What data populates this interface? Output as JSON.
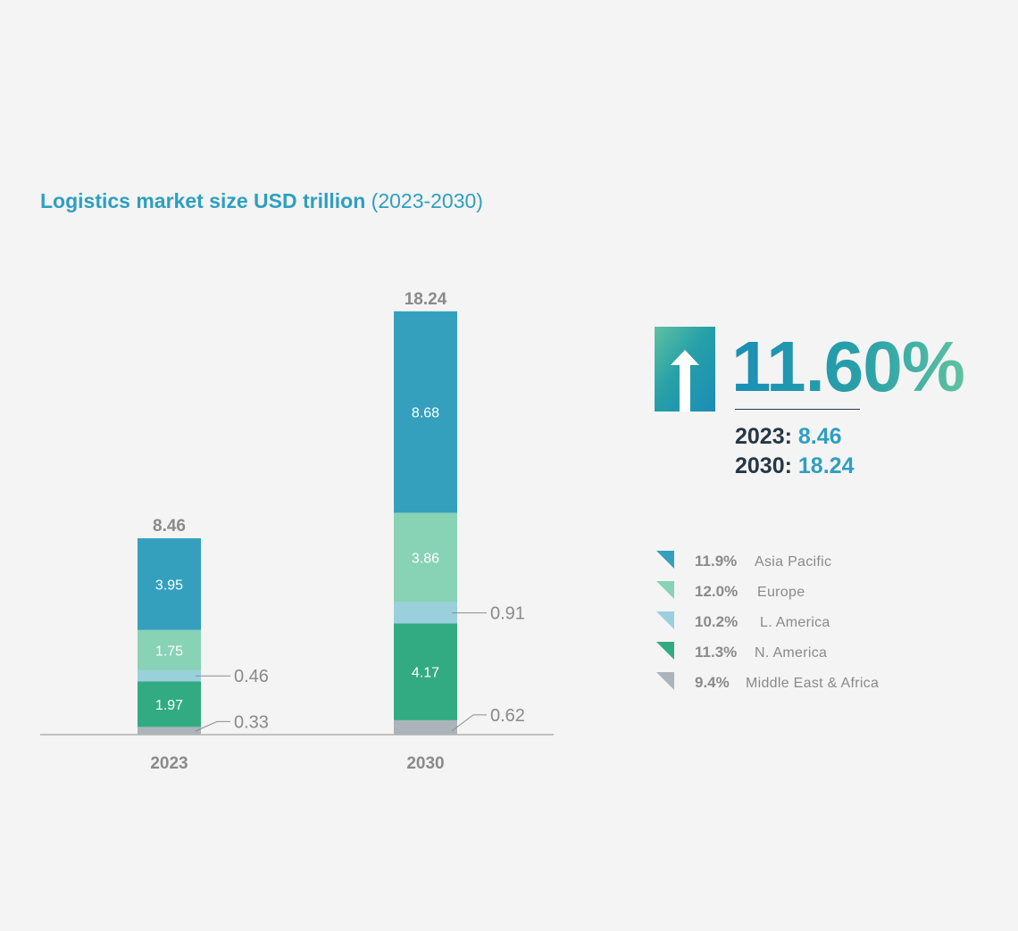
{
  "title": {
    "bold": "Logistics market size USD trillion",
    "regular": "(2023-2030)"
  },
  "colors": {
    "asia_pacific": "#34a0bd",
    "europe": "#88d2b6",
    "l_america": "#9ad0dc",
    "n_america": "#32ab82",
    "mea": "#adb4b9",
    "accent": "#2e9fc0",
    "dark": "#263746"
  },
  "chart_data": {
    "type": "bar",
    "stacked": true,
    "categories": [
      "2023",
      "2030"
    ],
    "totals": [
      8.46,
      18.24
    ],
    "series": [
      {
        "name": "Middle East & Africa",
        "color": "#adb4b9",
        "values": [
          0.33,
          0.62
        ],
        "labels": [
          "0.33",
          "0.62"
        ],
        "label_outside": true
      },
      {
        "name": "N. America",
        "color": "#32ab82",
        "values": [
          1.97,
          4.17
        ],
        "labels": [
          "1.97",
          "4.17"
        ],
        "label_outside": false
      },
      {
        "name": "L. America",
        "color": "#9ad0dc",
        "values": [
          0.46,
          0.91
        ],
        "labels": [
          "0.46",
          "0.91"
        ],
        "label_outside": true
      },
      {
        "name": "Europe",
        "color": "#88d2b6",
        "values": [
          1.75,
          3.86
        ],
        "labels": [
          "1.75",
          "3.86"
        ],
        "label_outside": false
      },
      {
        "name": "Asia Pacific",
        "color": "#34a0bd",
        "values": [
          3.95,
          8.68
        ],
        "labels": [
          "3.95",
          "8.68"
        ],
        "label_outside": false
      }
    ],
    "total_labels": [
      "8.46",
      "18.24"
    ],
    "grid": false
  },
  "growth": {
    "icon": "up-arrow-icon",
    "rate": "11.60%",
    "lines": [
      {
        "year": "2023:",
        "value": "8.46"
      },
      {
        "year": "2030:",
        "value": "18.24"
      }
    ]
  },
  "legend": [
    {
      "pct": "11.9%",
      "name": "Asia Pacific",
      "color": "#34a0bd"
    },
    {
      "pct": "12.0%",
      "name": "Europe",
      "color": "#88d2b6"
    },
    {
      "pct": "10.2%",
      "name": "L. America",
      "color": "#9ad0dc"
    },
    {
      "pct": "11.3%",
      "name": "N. America",
      "color": "#32ab82"
    },
    {
      "pct": "9.4%",
      "name": "Middle East & Africa",
      "color": "#adb4b9"
    }
  ]
}
